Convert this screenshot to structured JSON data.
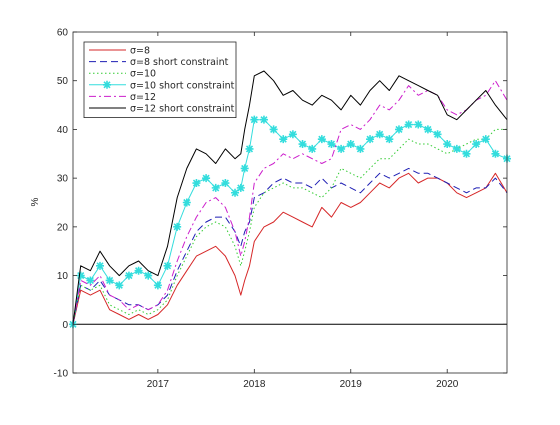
{
  "chart_data": {
    "type": "line",
    "title": "",
    "xlabel": "",
    "ylabel": "%",
    "xlim": [
      2016.12,
      2020.62
    ],
    "ylim": [
      -10,
      60
    ],
    "x_ticks": [
      2017,
      2018,
      2019,
      2020
    ],
    "x_tick_labels": [
      "2017",
      "2018",
      "2019",
      "2020"
    ],
    "y_ticks": [
      -10,
      0,
      10,
      20,
      30,
      40,
      50,
      60
    ],
    "y_tick_labels": [
      "-10",
      "0",
      "10",
      "20",
      "30",
      "40",
      "50",
      "60"
    ],
    "grid": false,
    "legend_position": "top-left",
    "zero_line": 0,
    "series": [
      {
        "name": "σ=8",
        "color": "#d62728",
        "style": "solid",
        "x": [
          2016.12,
          2016.2,
          2016.3,
          2016.4,
          2016.5,
          2016.6,
          2016.7,
          2016.8,
          2016.9,
          2017.0,
          2017.1,
          2017.2,
          2017.3,
          2017.4,
          2017.5,
          2017.6,
          2017.7,
          2017.8,
          2017.86,
          2017.9,
          2017.95,
          2018.0,
          2018.1,
          2018.2,
          2018.3,
          2018.4,
          2018.5,
          2018.6,
          2018.7,
          2018.8,
          2018.9,
          2019.0,
          2019.1,
          2019.2,
          2019.3,
          2019.4,
          2019.5,
          2019.6,
          2019.7,
          2019.8,
          2019.9,
          2020.0,
          2020.1,
          2020.2,
          2020.3,
          2020.4,
          2020.5,
          2020.62
        ],
        "y": [
          0,
          7,
          6,
          7,
          3,
          2,
          1,
          2,
          1,
          2,
          4,
          8,
          11,
          14,
          15,
          16,
          14,
          10,
          6,
          9,
          12,
          17,
          20,
          21,
          23,
          22,
          21,
          20,
          24,
          22,
          25,
          24,
          25,
          27,
          29,
          28,
          30,
          31,
          29,
          30,
          30,
          29,
          27,
          26,
          27,
          28,
          31,
          27
        ]
      },
      {
        "name": "σ=8 short constraint",
        "color": "#1f1fb4",
        "style": "dashed",
        "x": [
          2016.12,
          2016.2,
          2016.3,
          2016.4,
          2016.5,
          2016.6,
          2016.7,
          2016.8,
          2016.9,
          2017.0,
          2017.1,
          2017.2,
          2017.3,
          2017.4,
          2017.5,
          2017.6,
          2017.7,
          2017.8,
          2017.86,
          2017.9,
          2017.95,
          2018.0,
          2018.1,
          2018.2,
          2018.3,
          2018.4,
          2018.5,
          2018.6,
          2018.7,
          2018.8,
          2018.9,
          2019.0,
          2019.1,
          2019.2,
          2019.3,
          2019.4,
          2019.5,
          2019.6,
          2019.7,
          2019.8,
          2019.9,
          2020.0,
          2020.1,
          2020.2,
          2020.3,
          2020.4,
          2020.5,
          2020.62
        ],
        "y": [
          0,
          8,
          7,
          9,
          6,
          5,
          4,
          4,
          3,
          4,
          6,
          11,
          15,
          19,
          21,
          22,
          22,
          19,
          16,
          19,
          21,
          26,
          27,
          29,
          30,
          29,
          29,
          28,
          30,
          28,
          29,
          28,
          27,
          29,
          31,
          30,
          31,
          32,
          31,
          31,
          30,
          29,
          28,
          27,
          28,
          28,
          30,
          27
        ]
      },
      {
        "name": "σ=10",
        "color": "#33cc33",
        "style": "dotted",
        "x": [
          2016.12,
          2016.2,
          2016.3,
          2016.4,
          2016.5,
          2016.6,
          2016.7,
          2016.8,
          2016.9,
          2017.0,
          2017.1,
          2017.2,
          2017.3,
          2017.4,
          2017.5,
          2017.6,
          2017.7,
          2017.8,
          2017.86,
          2017.9,
          2017.95,
          2018.0,
          2018.1,
          2018.2,
          2018.3,
          2018.4,
          2018.5,
          2018.6,
          2018.7,
          2018.8,
          2018.9,
          2019.0,
          2019.1,
          2019.2,
          2019.3,
          2019.4,
          2019.5,
          2019.6,
          2019.7,
          2019.8,
          2019.9,
          2020.0,
          2020.1,
          2020.2,
          2020.3,
          2020.4,
          2020.5,
          2020.62
        ],
        "y": [
          0,
          8,
          7,
          8,
          4,
          3,
          2,
          3,
          2,
          3,
          5,
          10,
          14,
          18,
          20,
          21,
          20,
          16,
          12,
          15,
          19,
          24,
          27,
          28,
          29,
          28,
          28,
          27,
          26,
          28,
          32,
          31,
          30,
          32,
          34,
          34,
          36,
          38,
          37,
          37,
          36,
          35,
          36,
          37,
          38,
          38,
          40,
          40
        ]
      },
      {
        "name": "σ=10 short constraint",
        "color": "#33dddd",
        "style": "solid-star",
        "x": [
          2016.12,
          2016.2,
          2016.3,
          2016.4,
          2016.5,
          2016.6,
          2016.7,
          2016.8,
          2016.9,
          2017.0,
          2017.1,
          2017.2,
          2017.3,
          2017.4,
          2017.5,
          2017.6,
          2017.7,
          2017.8,
          2017.86,
          2017.9,
          2017.95,
          2018.0,
          2018.1,
          2018.2,
          2018.3,
          2018.4,
          2018.5,
          2018.6,
          2018.7,
          2018.8,
          2018.9,
          2019.0,
          2019.1,
          2019.2,
          2019.3,
          2019.4,
          2019.5,
          2019.6,
          2019.7,
          2019.8,
          2019.9,
          2020.0,
          2020.1,
          2020.2,
          2020.3,
          2020.4,
          2020.5,
          2020.62
        ],
        "y": [
          0,
          10,
          9,
          12,
          9,
          8,
          10,
          11,
          10,
          8,
          12,
          20,
          25,
          29,
          30,
          28,
          29,
          27,
          28,
          32,
          36,
          42,
          42,
          40,
          38,
          39,
          37,
          36,
          38,
          37,
          36,
          37,
          36,
          38,
          39,
          38,
          40,
          41,
          41,
          40,
          39,
          37,
          36,
          35,
          37,
          38,
          35,
          34
        ]
      },
      {
        "name": "σ=12",
        "color": "#cc1fcc",
        "style": "dashdot",
        "x": [
          2016.12,
          2016.2,
          2016.3,
          2016.4,
          2016.5,
          2016.6,
          2016.7,
          2016.8,
          2016.9,
          2017.0,
          2017.1,
          2017.2,
          2017.3,
          2017.4,
          2017.5,
          2017.6,
          2017.7,
          2017.8,
          2017.86,
          2017.9,
          2017.95,
          2018.0,
          2018.1,
          2018.2,
          2018.3,
          2018.4,
          2018.5,
          2018.6,
          2018.7,
          2018.8,
          2018.9,
          2019.0,
          2019.1,
          2019.2,
          2019.3,
          2019.4,
          2019.5,
          2019.6,
          2019.7,
          2019.8,
          2019.9,
          2020.0,
          2020.1,
          2020.2,
          2020.3,
          2020.4,
          2020.5,
          2020.62
        ],
        "y": [
          0,
          9,
          8,
          10,
          6,
          5,
          3,
          4,
          3,
          4,
          7,
          13,
          18,
          22,
          25,
          26,
          24,
          19,
          14,
          17,
          22,
          29,
          32,
          33,
          35,
          34,
          35,
          34,
          33,
          34,
          40,
          41,
          40,
          42,
          45,
          44,
          46,
          49,
          47,
          48,
          47,
          44,
          43,
          44,
          46,
          47,
          50,
          46
        ]
      },
      {
        "name": "σ=12 short constraint",
        "color": "#000000",
        "style": "solid",
        "x": [
          2016.12,
          2016.2,
          2016.3,
          2016.4,
          2016.5,
          2016.6,
          2016.7,
          2016.8,
          2016.9,
          2017.0,
          2017.1,
          2017.2,
          2017.3,
          2017.4,
          2017.5,
          2017.6,
          2017.7,
          2017.8,
          2017.86,
          2017.9,
          2017.95,
          2018.0,
          2018.1,
          2018.2,
          2018.3,
          2018.4,
          2018.5,
          2018.6,
          2018.7,
          2018.8,
          2018.9,
          2019.0,
          2019.1,
          2019.2,
          2019.3,
          2019.4,
          2019.5,
          2019.6,
          2019.7,
          2019.8,
          2019.9,
          2020.0,
          2020.1,
          2020.2,
          2020.3,
          2020.4,
          2020.5,
          2020.62
        ],
        "y": [
          0,
          12,
          11,
          15,
          12,
          10,
          12,
          13,
          11,
          10,
          16,
          26,
          32,
          36,
          35,
          33,
          36,
          34,
          35,
          40,
          45,
          51,
          52,
          50,
          47,
          48,
          46,
          45,
          47,
          46,
          44,
          47,
          45,
          48,
          50,
          48,
          51,
          50,
          49,
          48,
          47,
          43,
          42,
          44,
          46,
          48,
          45,
          42
        ]
      }
    ]
  }
}
